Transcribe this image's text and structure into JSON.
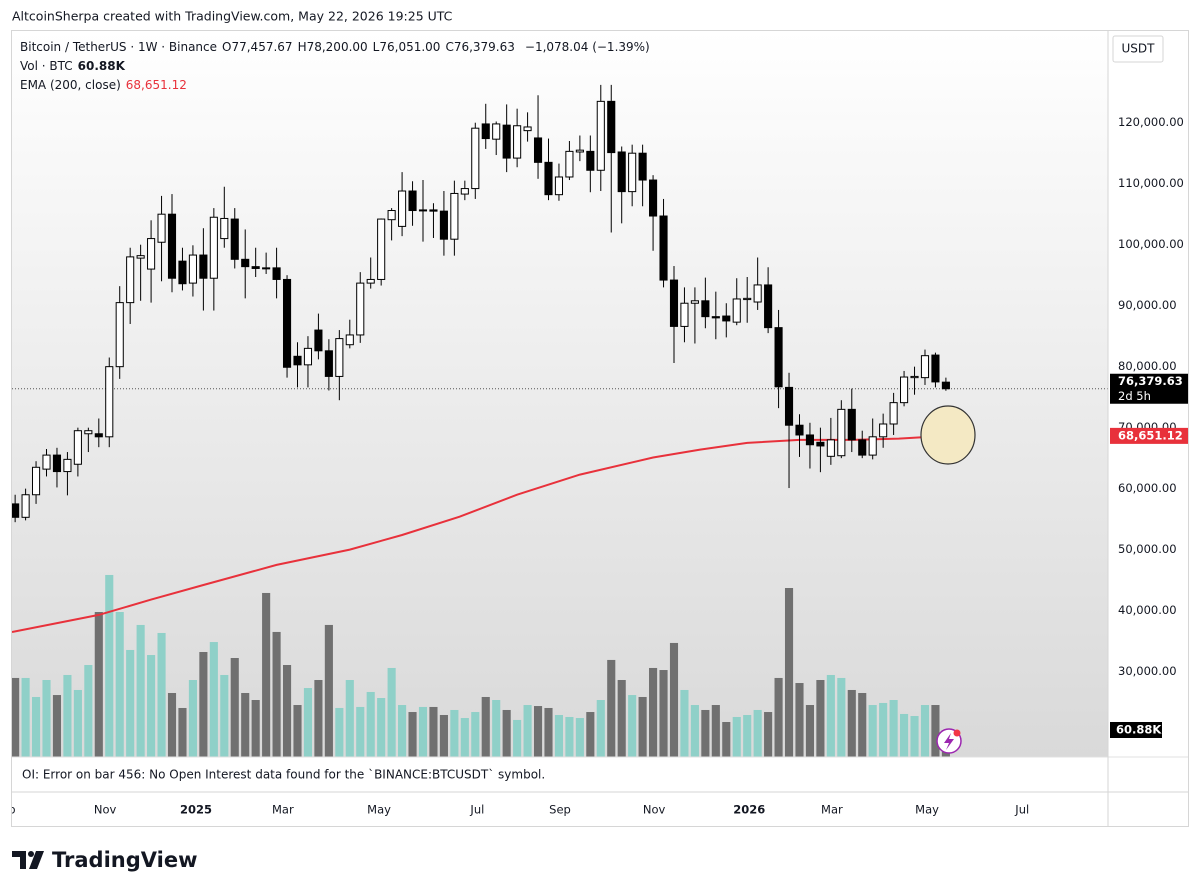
{
  "header": {
    "text": "AltcoinSherpa created with TradingView.com, May 22, 2026 19:25 UTC"
  },
  "chart_data": {
    "type": "candlestick",
    "legend": {
      "symbol": "Bitcoin / TetherUS · 1W · Binance",
      "ohlc": [
        "O77,457.67",
        "H78,200.00",
        "L76,051.00",
        "C76,379.63"
      ],
      "change": "−1,078.04 (−1.39%)",
      "volume_name": "Vol · BTC",
      "volume_value": "60.88K",
      "ema_name": "EMA (200, close)",
      "ema_value": "68,651.12"
    },
    "currency": "USDT",
    "up_color": "#ffffff",
    "down_color": "#000000",
    "wick_color": "#000000",
    "open": [
      57500,
      55300,
      59000,
      63200,
      65500,
      62800,
      64000,
      69000,
      69000,
      68500,
      80000,
      90500,
      97800,
      96000,
      100400,
      105000,
      97300,
      93700,
      98300,
      94500,
      101000,
      104200,
      97600,
      96400,
      96200,
      96200,
      94300,
      81700,
      80300,
      86000,
      82600,
      78400,
      83600,
      85200,
      93700,
      94300,
      104100,
      103000,
      108800,
      105600,
      105700,
      105500,
      100900,
      108300,
      109200,
      119800,
      117300,
      119600,
      114200,
      118700,
      117500,
      113500,
      108200,
      111100,
      115200,
      115300,
      112200,
      123500,
      115200,
      108700,
      115000,
      110600,
      104700,
      94200,
      86600,
      90400,
      90800,
      88200,
      88300,
      87300,
      91000,
      90600,
      93400,
      86400,
      76600,
      70400,
      68800,
      67600,
      65300,
      65400,
      73000,
      68000,
      65500,
      68500,
      70600,
      74100,
      78200,
      78200,
      81900,
      77457.67
    ],
    "high": [
      59000,
      60000,
      64500,
      66500,
      66700,
      66000,
      70000,
      70000,
      71500,
      81500,
      93200,
      99500,
      100000,
      104000,
      108000,
      108300,
      99500,
      99900,
      102700,
      106000,
      109500,
      106000,
      102500,
      99500,
      98700,
      99500,
      95000,
      84000,
      85000,
      88700,
      84500,
      86000,
      87700,
      95500,
      97900,
      104300,
      106000,
      111900,
      110400,
      110600,
      106800,
      108800,
      110500,
      110500,
      120000,
      123100,
      120200,
      123000,
      122300,
      121700,
      124500,
      117400,
      113300,
      117000,
      117900,
      117900,
      126200,
      126200,
      116100,
      116400,
      116400,
      111400,
      107500,
      96500,
      93000,
      93000,
      94600,
      92300,
      90400,
      94500,
      94700,
      97900,
      96300,
      89300,
      79000,
      72200,
      70800,
      70000,
      71600,
      74500,
      76400,
      69500,
      71500,
      72300,
      75700,
      79300,
      80000,
      82800,
      82300,
      78200
    ],
    "low": [
      54500,
      54800,
      57500,
      62000,
      60200,
      58900,
      62000,
      66000,
      66800,
      66800,
      78000,
      87000,
      90800,
      90500,
      94000,
      92200,
      92500,
      91500,
      89200,
      89200,
      99500,
      96100,
      91200,
      94700,
      95200,
      91200,
      78200,
      76600,
      76600,
      81200,
      76100,
      74500,
      83000,
      83900,
      92800,
      93300,
      100700,
      101400,
      103100,
      100500,
      101100,
      98200,
      98200,
      107300,
      107500,
      115700,
      114700,
      111900,
      112700,
      116900,
      110800,
      107300,
      107200,
      110600,
      113700,
      108600,
      108800,
      102000,
      103500,
      106300,
      106300,
      99000,
      93000,
      80600,
      84000,
      83800,
      86300,
      84500,
      84800,
      86800,
      87200,
      89300,
      85500,
      73200,
      60100,
      65200,
      63300,
      62700,
      63900,
      65000,
      66000,
      65000,
      64800,
      66700,
      68800,
      73500,
      75400,
      77000,
      76600,
      76051
    ],
    "close": [
      55300,
      59000,
      63500,
      65500,
      62800,
      64800,
      69500,
      69500,
      68500,
      80000,
      90500,
      98000,
      98200,
      101000,
      105000,
      94500,
      93600,
      98300,
      94500,
      104500,
      104300,
      97600,
      96400,
      96100,
      96100,
      94300,
      79900,
      80300,
      83000,
      82600,
      78400,
      84600,
      85200,
      93700,
      94300,
      104200,
      105600,
      108800,
      105600,
      105700,
      105500,
      100900,
      108400,
      109200,
      119100,
      117400,
      119800,
      114200,
      119500,
      119300,
      113500,
      108200,
      111100,
      115300,
      115500,
      112200,
      123500,
      115100,
      108700,
      115000,
      110600,
      104700,
      94200,
      86600,
      90400,
      90800,
      88200,
      88000,
      87500,
      91100,
      91200,
      93400,
      86400,
      76700,
      70400,
      68800,
      67200,
      67000,
      68000,
      73000,
      68000,
      65500,
      68500,
      70600,
      74100,
      78300,
      78400,
      81800,
      77500,
      76379.63
    ],
    "volume": {
      "name": "Vol",
      "axis": "y2",
      "up_color": "#8fd0c8",
      "down_color": "#707070",
      "values": [
        178200,
        178200,
        135300,
        173600,
        139700,
        184900,
        151100,
        207400,
        326900,
        410400,
        326900,
        241300,
        297700,
        229900,
        279600,
        144300,
        110500,
        173600,
        236700,
        259200,
        184900,
        223200,
        144300,
        128500,
        369800,
        281900,
        207400,
        117200,
        155500,
        173600,
        297700,
        110500,
        173600,
        112800,
        146600,
        133000,
        200700,
        117200,
        101400,
        112800,
        112800,
        94700,
        106000,
        87900,
        101400,
        135300,
        128500,
        106000,
        83500,
        117200,
        114900,
        110500,
        94700,
        90200,
        87900,
        101400,
        128500,
        218800,
        173600,
        139700,
        135300,
        200700,
        196100,
        257100,
        151100,
        117200,
        106000,
        117200,
        78900,
        90200,
        94700,
        106000,
        101400,
        178200,
        381000,
        166800,
        117200,
        173600,
        184900,
        178200,
        151100,
        144300,
        117200,
        121800,
        128500,
        97000,
        92400,
        117200,
        117200,
        60880
      ]
    },
    "ema": {
      "name": "EMA (200, close)",
      "color": "#e8313b",
      "x": [
        -0.3,
        8,
        13,
        18,
        25,
        32,
        37,
        42.5,
        48,
        54,
        61,
        65.5,
        70,
        75,
        80,
        84.5,
        89
      ],
      "values": [
        36500,
        39300,
        41800,
        44200,
        47500,
        50000,
        52400,
        55400,
        59000,
        62300,
        65100,
        66400,
        67500,
        68000,
        68000,
        68200,
        68651.12
      ]
    },
    "price_label": {
      "value": 76379.63,
      "label": "76,379.63",
      "countdown": "2d 5h"
    },
    "ema_label": {
      "value": 68651.12,
      "label": "68,651.12"
    },
    "volume_label": {
      "value": 60880,
      "label": "60.88K"
    },
    "error_message": "OI: Error on bar 456: No Open Interest data found for the `BINANCE:BTCUSDT` symbol.",
    "xlim": [
      -0.3,
      104.5
    ],
    "xticks": [
      {
        "value": -1,
        "label": "Sep"
      },
      {
        "value": 8.6,
        "label": "Nov"
      },
      {
        "value": 17.3,
        "label": "2025",
        "bold": true
      },
      {
        "value": 25.6,
        "label": "Mar"
      },
      {
        "value": 34.8,
        "label": "May"
      },
      {
        "value": 44.2,
        "label": "Jul"
      },
      {
        "value": 52.1,
        "label": "Sep"
      },
      {
        "value": 61.1,
        "label": "Nov"
      },
      {
        "value": 70.2,
        "label": "2026",
        "bold": true
      },
      {
        "value": 78.1,
        "label": "Mar"
      },
      {
        "value": 87.2,
        "label": "May"
      },
      {
        "value": 96.3,
        "label": "Jul"
      }
    ],
    "ylim": [
      16000,
      135200
    ],
    "yticks": [
      {
        "value": 30000,
        "label": "30,000.00"
      },
      {
        "value": 40000,
        "label": "40,000.00"
      },
      {
        "value": 50000,
        "label": "50,000.00"
      },
      {
        "value": 60000,
        "label": "60,000.00"
      },
      {
        "value": 70000,
        "label": "70,000.00"
      },
      {
        "value": 80000,
        "label": "80,000.00"
      },
      {
        "value": 90000,
        "label": "90,000.00"
      },
      {
        "value": 100000,
        "label": "100,000.00"
      },
      {
        "value": 110000,
        "label": "110,000.00"
      },
      {
        "value": 120000,
        "label": "120,000.00"
      }
    ],
    "y2lim": [
      0,
      1639000
    ],
    "grid": false
  },
  "footer": {
    "brand": "TradingView"
  }
}
